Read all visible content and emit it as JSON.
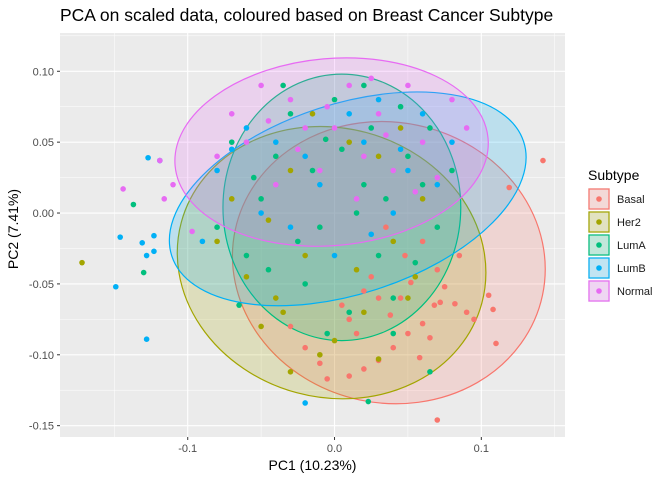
{
  "chart_data": {
    "type": "scatter",
    "title": "PCA on scaled data, coloured based on Breast Cancer Subtype",
    "xlabel": "PC1 (10.23%)",
    "ylabel": "PC2 (7.41%)",
    "xlim": [
      -0.187,
      0.157
    ],
    "ylim": [
      -0.158,
      0.127
    ],
    "x_ticks": [
      -0.1,
      0.0,
      0.1
    ],
    "x_tick_labels": [
      "-0.1",
      "0.0",
      "0.1"
    ],
    "y_ticks": [
      -0.15,
      -0.1,
      -0.05,
      0.0,
      0.05,
      0.1
    ],
    "y_tick_labels": [
      "-0.15",
      "-0.10",
      "-0.05",
      "0.00",
      "0.05",
      "0.10"
    ],
    "grid": true,
    "panel_background": "#ebebeb",
    "legend": {
      "title": "Subtype",
      "position": "right"
    },
    "series": [
      {
        "name": "Basal",
        "color": "#f8766d",
        "ellipse": {
          "cx": 0.037,
          "cy": -0.035,
          "rx": 0.107,
          "ry": 0.099,
          "rotation": 12
        },
        "points": [
          [
            0.142,
            0.037
          ],
          [
            0.119,
            0.018
          ],
          [
            0.105,
            -0.058
          ],
          [
            0.108,
            -0.068
          ],
          [
            0.11,
            -0.092
          ],
          [
            0.095,
            -0.075
          ],
          [
            0.07,
            -0.146
          ],
          [
            0.072,
            -0.063
          ],
          [
            0.082,
            -0.064
          ],
          [
            0.09,
            -0.07
          ],
          [
            0.068,
            -0.065
          ],
          [
            0.06,
            -0.078
          ],
          [
            0.05,
            -0.085
          ],
          [
            0.058,
            -0.102
          ],
          [
            0.04,
            -0.095
          ],
          [
            0.03,
            -0.104
          ],
          [
            0.02,
            -0.11
          ],
          [
            0.01,
            -0.115
          ],
          [
            -0.005,
            -0.117
          ],
          [
            -0.01,
            -0.106
          ],
          [
            0.085,
            -0.03
          ],
          [
            0.07,
            -0.04
          ],
          [
            0.06,
            -0.02
          ],
          [
            0.075,
            -0.052
          ],
          [
            0.045,
            -0.06
          ],
          [
            0.038,
            -0.072
          ],
          [
            0.052,
            -0.049
          ],
          [
            0.065,
            -0.088
          ],
          [
            0.03,
            -0.06
          ],
          [
            0.02,
            -0.055
          ],
          [
            0.01,
            -0.075
          ],
          [
            0.005,
            -0.065
          ],
          [
            -0.02,
            -0.095
          ],
          [
            0.015,
            -0.085
          ],
          [
            0.048,
            -0.03
          ],
          [
            0.025,
            -0.045
          ],
          [
            -0.03,
            -0.08
          ],
          [
            0.035,
            -0.01
          ]
        ]
      },
      {
        "name": "Her2",
        "color": "#a3a500",
        "ellipse": {
          "cx": -0.002,
          "cy": -0.035,
          "rx": 0.106,
          "ry": 0.095,
          "rotation": 15
        },
        "points": [
          [
            -0.172,
            -0.035
          ],
          [
            -0.03,
            -0.112
          ],
          [
            0.03,
            -0.103
          ],
          [
            -0.01,
            -0.1
          ],
          [
            -0.05,
            -0.08
          ],
          [
            0.05,
            -0.06
          ],
          [
            -0.06,
            -0.045
          ],
          [
            -0.04,
            -0.06
          ],
          [
            0.02,
            -0.07
          ],
          [
            0.0,
            -0.09
          ],
          [
            -0.08,
            -0.02
          ],
          [
            0.06,
            0.01
          ],
          [
            -0.03,
            0.03
          ],
          [
            0.04,
            -0.02
          ],
          [
            0.01,
            0.05
          ],
          [
            -0.02,
            -0.03
          ],
          [
            -0.07,
            0.01
          ],
          [
            0.03,
            0.04
          ],
          [
            -0.045,
            -0.005
          ],
          [
            0.015,
            -0.04
          ],
          [
            0.045,
            0.06
          ],
          [
            -0.015,
            0.07
          ],
          [
            0.055,
            -0.045
          ],
          [
            -0.035,
            -0.07
          ]
        ]
      },
      {
        "name": "LumA",
        "color": "#00bf7d",
        "ellipse": {
          "cx": 0.005,
          "cy": 0.004,
          "rx": 0.081,
          "ry": 0.094,
          "rotation": 0
        },
        "points": [
          [
            -0.137,
            0.006
          ],
          [
            -0.13,
            -0.042
          ],
          [
            0.023,
            -0.133
          ],
          [
            0.065,
            -0.112
          ],
          [
            -0.006,
            0.052
          ],
          [
            -0.04,
            0.04
          ],
          [
            0.02,
            0.02
          ],
          [
            -0.01,
            -0.01
          ],
          [
            0.03,
            -0.03
          ],
          [
            -0.05,
            0.01
          ],
          [
            0.05,
            0.04
          ],
          [
            0.0,
            0.08
          ],
          [
            -0.06,
            -0.03
          ],
          [
            0.04,
            -0.06
          ],
          [
            -0.02,
            -0.05
          ],
          [
            0.06,
            0.02
          ],
          [
            0.01,
            -0.07
          ],
          [
            -0.03,
            0.07
          ],
          [
            0.045,
            0.075
          ],
          [
            -0.07,
            0.05
          ],
          [
            0.07,
            -0.01
          ],
          [
            -0.015,
            0.03
          ],
          [
            0.025,
            0.06
          ],
          [
            -0.045,
            -0.04
          ],
          [
            0.015,
            0.0
          ],
          [
            0.035,
            0.01
          ],
          [
            -0.025,
            -0.02
          ],
          [
            0.055,
            -0.035
          ],
          [
            -0.055,
            0.025
          ],
          [
            0.005,
            0.045
          ],
          [
            -0.005,
            -0.085
          ],
          [
            0.08,
            0.03
          ],
          [
            -0.08,
            -0.01
          ],
          [
            0.02,
            0.09
          ],
          [
            0.04,
            -0.085
          ],
          [
            -0.035,
            0.09
          ],
          [
            0.065,
            0.06
          ],
          [
            -0.065,
            -0.065
          ]
        ]
      },
      {
        "name": "LumB",
        "color": "#00b0f6",
        "ellipse": {
          "cx": 0.009,
          "cy": 0.01,
          "rx": 0.126,
          "ry": 0.067,
          "rotation": -18
        },
        "points": [
          [
            -0.127,
            0.039
          ],
          [
            -0.119,
            0.037
          ],
          [
            -0.128,
            -0.03
          ],
          [
            -0.123,
            -0.016
          ],
          [
            -0.123,
            -0.027
          ],
          [
            -0.131,
            -0.021
          ],
          [
            -0.146,
            -0.017
          ],
          [
            -0.149,
            -0.052
          ],
          [
            -0.128,
            -0.089
          ],
          [
            -0.02,
            -0.134
          ],
          [
            -0.08,
            0.03
          ],
          [
            0.08,
            0.05
          ],
          [
            -0.04,
            0.05
          ],
          [
            0.03,
            0.08
          ],
          [
            -0.09,
            -0.02
          ],
          [
            0.06,
            0.07
          ],
          [
            -0.01,
            0.02
          ],
          [
            0.04,
            0.0
          ],
          [
            -0.06,
            0.06
          ],
          [
            0.0,
            -0.03
          ],
          [
            0.05,
            0.03
          ],
          [
            -0.03,
            -0.01
          ],
          [
            0.02,
            0.05
          ],
          [
            -0.05,
            0.0
          ],
          [
            0.07,
            0.02
          ],
          [
            0.01,
            0.07
          ],
          [
            -0.02,
            0.04
          ],
          [
            0.045,
            0.045
          ],
          [
            -0.07,
            0.045
          ],
          [
            0.025,
            -0.015
          ]
        ]
      },
      {
        "name": "Normal",
        "color": "#e76bf3",
        "ellipse": {
          "cx": -0.002,
          "cy": 0.043,
          "rx": 0.107,
          "ry": 0.066,
          "rotation": -5
        },
        "points": [
          [
            -0.144,
            0.017
          ],
          [
            -0.119,
            0.037
          ],
          [
            -0.116,
            0.01
          ],
          [
            -0.097,
            -0.013
          ],
          [
            -0.11,
            0.02
          ],
          [
            0.0,
            0.06
          ],
          [
            -0.03,
            0.08
          ],
          [
            0.02,
            0.04
          ],
          [
            0.05,
            0.09
          ],
          [
            -0.06,
            0.05
          ],
          [
            0.03,
            0.07
          ],
          [
            -0.01,
            0.03
          ],
          [
            0.06,
            0.05
          ],
          [
            -0.04,
            0.02
          ],
          [
            0.01,
            0.09
          ],
          [
            -0.02,
            0.06
          ],
          [
            0.04,
            0.03
          ],
          [
            -0.07,
            0.07
          ],
          [
            0.08,
            0.08
          ],
          [
            0.015,
            0.01
          ],
          [
            -0.05,
            0.09
          ],
          [
            0.07,
            0.025
          ],
          [
            -0.025,
            0.045
          ],
          [
            0.035,
            0.055
          ],
          [
            -0.005,
            0.075
          ],
          [
            0.055,
            0.015
          ],
          [
            0.025,
            0.095
          ],
          [
            -0.045,
            0.065
          ],
          [
            -0.08,
            0.04
          ],
          [
            0.09,
            0.06
          ]
        ]
      }
    ]
  }
}
